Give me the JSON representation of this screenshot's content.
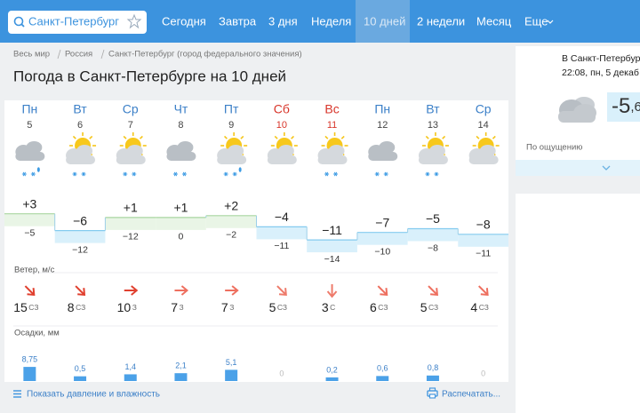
{
  "search": {
    "value": "Санкт-Петербург"
  },
  "nav": [
    "Сегодня",
    "Завтра",
    "3 дня",
    "Неделя",
    "10 дней",
    "2 недели",
    "Месяц",
    "Еще"
  ],
  "breadcrumbs": [
    "Весь мир",
    "Россия",
    "Санкт-Петербург (город федерального значения)"
  ],
  "title": "Погода в Санкт-Петербурге на 10 дней",
  "days": [
    {
      "weekday": "Пн",
      "date": "5",
      "max": {
        "value": 3,
        "label": "+3"
      },
      "min": {
        "value": -5,
        "label": "−5"
      },
      "wind_speed": "15",
      "wind_dir": "СЗ",
      "precip": {
        "value": 8.75,
        "label": "8,75"
      }
    },
    {
      "weekday": "Вт",
      "date": "6",
      "max": {
        "value": -6,
        "label": "−6"
      },
      "min": {
        "value": -12,
        "label": "−12"
      },
      "wind_speed": "8",
      "wind_dir": "СЗ",
      "precip": {
        "value": 0.5,
        "label": "0,5"
      }
    },
    {
      "weekday": "Ср",
      "date": "7",
      "max": {
        "value": 1,
        "label": "+1"
      },
      "min": {
        "value": -12,
        "label": "−12"
      },
      "wind_speed": "10",
      "wind_dir": "З",
      "precip": {
        "value": 1.4,
        "label": "1,4"
      }
    },
    {
      "weekday": "Чт",
      "date": "8",
      "max": {
        "value": 1,
        "label": "+1"
      },
      "min": {
        "value": 0,
        "label": "0"
      },
      "wind_speed": "7",
      "wind_dir": "З",
      "precip": {
        "value": 2.1,
        "label": "2,1"
      }
    },
    {
      "weekday": "Пт",
      "date": "9",
      "max": {
        "value": 2,
        "label": "+2"
      },
      "min": {
        "value": -2,
        "label": "−2"
      },
      "wind_speed": "7",
      "wind_dir": "З",
      "precip": {
        "value": 5.1,
        "label": "5,1"
      }
    },
    {
      "weekday": "Сб",
      "date": "10",
      "max": {
        "value": -4,
        "label": "−4"
      },
      "min": {
        "value": -11,
        "label": "−11"
      },
      "wind_speed": "5",
      "wind_dir": "СЗ",
      "precip": {
        "value": 0,
        "label": "0"
      }
    },
    {
      "weekday": "Вс",
      "date": "11",
      "max": {
        "value": -11,
        "label": "−11"
      },
      "min": {
        "value": -14,
        "label": "−14"
      },
      "wind_speed": "3",
      "wind_dir": "С",
      "precip": {
        "value": 0.2,
        "label": "0,2"
      }
    },
    {
      "weekday": "Пн",
      "date": "12",
      "max": {
        "value": -7,
        "label": "−7"
      },
      "min": {
        "value": -10,
        "label": "−10"
      },
      "wind_speed": "6",
      "wind_dir": "СЗ",
      "precip": {
        "value": 0.6,
        "label": "0,6"
      }
    },
    {
      "weekday": "Вт",
      "date": "13",
      "max": {
        "value": -5,
        "label": "−5"
      },
      "min": {
        "value": -8,
        "label": "−8"
      },
      "wind_speed": "5",
      "wind_dir": "СЗ",
      "precip": {
        "value": 0.8,
        "label": "0,8"
      }
    },
    {
      "weekday": "Ср",
      "date": "14",
      "max": {
        "value": -8,
        "label": "−8"
      },
      "min": {
        "value": -11,
        "label": "−11"
      },
      "wind_speed": "4",
      "wind_dir": "СЗ",
      "precip": {
        "value": 0,
        "label": "0"
      }
    }
  ],
  "wind_label": "Ветер, м/с",
  "precip_label": "Осадки, мм",
  "footer": {
    "pressure_link": "Показать давление и влажность",
    "print_link": "Распечатать..."
  },
  "now": {
    "location": "В Санкт-Петербург",
    "time": "22:08, пн, 5 декаб",
    "temp": "-5",
    "temp_fraction": ",6",
    "feels_like": "По ощущению"
  }
}
